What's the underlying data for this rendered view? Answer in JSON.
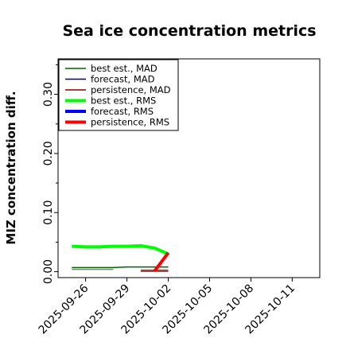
{
  "chart_data": {
    "type": "line",
    "title": "Sea ice concentration metrics",
    "xlabel": "",
    "ylabel": "MIZ concentration diff.",
    "xlim": [
      "2025-09-24",
      "2025-10-13"
    ],
    "ylim": [
      -0.01,
      0.36
    ],
    "yticks": [
      0.0,
      0.1,
      0.2,
      0.3
    ],
    "ytick_labels": [
      "0.00",
      "0.10",
      "0.20",
      "0.30"
    ],
    "xticks": [
      "2025-09-26",
      "2025-09-29",
      "2025-10-02",
      "2025-10-05",
      "2025-10-08",
      "2025-10-11"
    ],
    "highlighted_xtick": "2025-10-02",
    "highlight_color": "#228b22",
    "legend_position": "upper-left",
    "series": [
      {
        "name": "best est., MAD",
        "color": "#006400",
        "width": 1.5,
        "x": [
          "2025-09-25",
          "2025-09-26",
          "2025-09-27",
          "2025-09-28",
          "2025-09-29",
          "2025-09-30",
          "2025-10-01",
          "2025-10-02"
        ],
        "y": [
          0.007,
          0.007,
          0.007,
          0.007,
          0.008,
          0.008,
          0.008,
          0.008
        ]
      },
      {
        "name": "forecast,  MAD",
        "color": "#00008b",
        "width": 1.5,
        "x": [],
        "y": []
      },
      {
        "name": "persistence, MAD",
        "color": "#8b0000",
        "width": 1.5,
        "x": [
          "2025-09-30",
          "2025-10-01",
          "2025-10-02"
        ],
        "y": [
          0.001,
          0.001,
          0.001
        ]
      },
      {
        "name": "best est., RMS",
        "color": "#00ff00",
        "width": 4,
        "x": [
          "2025-09-25",
          "2025-09-26",
          "2025-09-27",
          "2025-09-28",
          "2025-09-29",
          "2025-09-30",
          "2025-10-01",
          "2025-10-02"
        ],
        "y": [
          0.043,
          0.042,
          0.042,
          0.043,
          0.043,
          0.044,
          0.04,
          0.03
        ]
      },
      {
        "name": "forecast,  RMS",
        "color": "#0000ff",
        "width": 4,
        "x": [],
        "y": []
      },
      {
        "name": "persistence, RMS",
        "color": "#ff0000",
        "width": 4,
        "x": [
          "2025-10-01",
          "2025-10-02"
        ],
        "y": [
          0.001,
          0.032
        ]
      }
    ],
    "grey_segments": [
      {
        "color": "#808080",
        "x": [
          "2025-09-25",
          "2025-09-28"
        ],
        "y": [
          0.004,
          0.004
        ]
      },
      {
        "color": "#808080",
        "x": [
          "2025-09-30",
          "2025-10-02"
        ],
        "y": [
          0.003,
          0.003
        ]
      }
    ]
  }
}
